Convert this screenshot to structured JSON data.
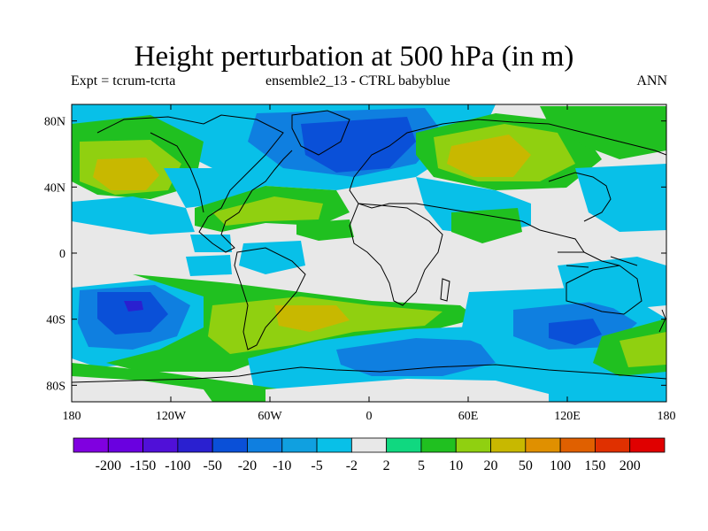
{
  "chart_data": {
    "type": "heatmap",
    "title": "Height perturbation at 500 hPa (in m)",
    "subtitle_left": "Expt = tcrum-tcrta",
    "subtitle_center": "ensemble2_13 - CTRL babyblue",
    "subtitle_right": "ANN",
    "x_ticks": [
      "180",
      "120W",
      "60W",
      "0",
      "60E",
      "120E",
      "180"
    ],
    "x_tick_values": [
      -180,
      -120,
      -60,
      0,
      60,
      120,
      180
    ],
    "y_ticks": [
      "80N",
      "40N",
      "0",
      "40S",
      "80S"
    ],
    "y_tick_values": [
      80,
      40,
      0,
      -40,
      -80
    ],
    "xlim": [
      -180,
      180
    ],
    "ylim": [
      -90,
      90
    ],
    "colorbar": {
      "labels": [
        "-200",
        "-150",
        "-100",
        "-50",
        "-20",
        "-10",
        "-5",
        "-2",
        "2",
        "5",
        "10",
        "20",
        "50",
        "100",
        "150",
        "200"
      ],
      "colors": [
        "#8000e0",
        "#6a00e0",
        "#5010d8",
        "#2a20d0",
        "#0a50d8",
        "#0f7fe0",
        "#10a0e0",
        "#08c0e8",
        "#e8e8e8",
        "#10d880",
        "#20c020",
        "#90d010",
        "#c8b800",
        "#e09000",
        "#e06000",
        "#e03000",
        "#e00000"
      ]
    },
    "regions": [
      {
        "name": "north-pacific-positive",
        "lon": -165,
        "lat": 48,
        "value": 20
      },
      {
        "name": "north-america-arctic-negative",
        "lon": -100,
        "lat": 65,
        "value": -10
      },
      {
        "name": "north-atlantic-positive",
        "lon": -70,
        "lat": 28,
        "value": 10
      },
      {
        "name": "eurasia-arctic-negative",
        "lon": 10,
        "lat": 70,
        "value": -20
      },
      {
        "name": "siberia-positive",
        "lon": 60,
        "lat": 60,
        "value": 20
      },
      {
        "name": "north-africa-negative",
        "lon": 30,
        "lat": 30,
        "value": -5
      },
      {
        "name": "south-pacific-negative",
        "lon": -145,
        "lat": -30,
        "value": -20
      },
      {
        "name": "south-atlantic-positive",
        "lon": -40,
        "lat": -35,
        "value": 20
      },
      {
        "name": "indian-ocean-negative",
        "lon": 40,
        "lat": -50,
        "value": -10
      },
      {
        "name": "south-indian-negative",
        "lon": 120,
        "lat": -45,
        "value": -10
      },
      {
        "name": "south-pacific-east-positive",
        "lon": 170,
        "lat": -60,
        "value": 10
      },
      {
        "name": "antarctic-negative",
        "lon": 0,
        "lat": -80,
        "value": -5
      }
    ]
  }
}
